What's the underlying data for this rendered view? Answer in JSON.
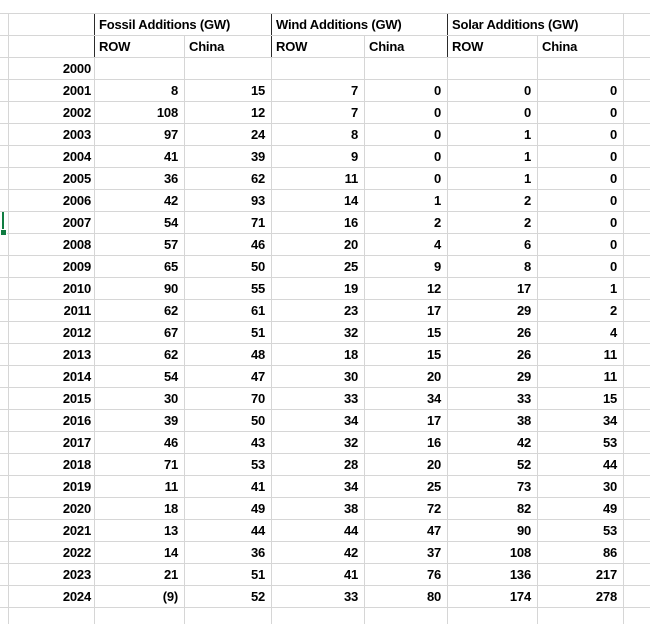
{
  "table": {
    "groups": [
      {
        "label": "Fossil Additions (GW)"
      },
      {
        "label": "Wind Additions (GW)"
      },
      {
        "label": "Solar Additions (GW)"
      }
    ],
    "subheaders": [
      "ROW",
      "China"
    ],
    "rows": [
      {
        "year": "2000",
        "values": [
          "",
          "",
          "",
          "",
          "",
          ""
        ]
      },
      {
        "year": "2001",
        "values": [
          "8",
          "15",
          "7",
          "0",
          "0",
          "0"
        ]
      },
      {
        "year": "2002",
        "values": [
          "108",
          "12",
          "7",
          "0",
          "0",
          "0"
        ]
      },
      {
        "year": "2003",
        "values": [
          "97",
          "24",
          "8",
          "0",
          "1",
          "0"
        ]
      },
      {
        "year": "2004",
        "values": [
          "41",
          "39",
          "9",
          "0",
          "1",
          "0"
        ]
      },
      {
        "year": "2005",
        "values": [
          "36",
          "62",
          "11",
          "0",
          "1",
          "0"
        ]
      },
      {
        "year": "2006",
        "values": [
          "42",
          "93",
          "14",
          "1",
          "2",
          "0"
        ]
      },
      {
        "year": "2007",
        "values": [
          "54",
          "71",
          "16",
          "2",
          "2",
          "0"
        ]
      },
      {
        "year": "2008",
        "values": [
          "57",
          "46",
          "20",
          "4",
          "6",
          "0"
        ]
      },
      {
        "year": "2009",
        "values": [
          "65",
          "50",
          "25",
          "9",
          "8",
          "0"
        ]
      },
      {
        "year": "2010",
        "values": [
          "90",
          "55",
          "19",
          "12",
          "17",
          "1"
        ]
      },
      {
        "year": "2011",
        "values": [
          "62",
          "61",
          "23",
          "17",
          "29",
          "2"
        ]
      },
      {
        "year": "2012",
        "values": [
          "67",
          "51",
          "32",
          "15",
          "26",
          "4"
        ]
      },
      {
        "year": "2013",
        "values": [
          "62",
          "48",
          "18",
          "15",
          "26",
          "11"
        ]
      },
      {
        "year": "2014",
        "values": [
          "54",
          "47",
          "30",
          "20",
          "29",
          "11"
        ]
      },
      {
        "year": "2015",
        "values": [
          "30",
          "70",
          "33",
          "34",
          "33",
          "15"
        ]
      },
      {
        "year": "2016",
        "values": [
          "39",
          "50",
          "34",
          "17",
          "38",
          "34"
        ]
      },
      {
        "year": "2017",
        "values": [
          "46",
          "43",
          "32",
          "16",
          "42",
          "53"
        ]
      },
      {
        "year": "2018",
        "values": [
          "71",
          "53",
          "28",
          "20",
          "52",
          "44"
        ]
      },
      {
        "year": "2019",
        "values": [
          "11",
          "41",
          "34",
          "25",
          "73",
          "30"
        ]
      },
      {
        "year": "2020",
        "values": [
          "18",
          "49",
          "38",
          "72",
          "82",
          "49"
        ]
      },
      {
        "year": "2021",
        "values": [
          "13",
          "44",
          "44",
          "47",
          "90",
          "53"
        ]
      },
      {
        "year": "2022",
        "values": [
          "14",
          "36",
          "42",
          "37",
          "108",
          "86"
        ]
      },
      {
        "year": "2023",
        "values": [
          "21",
          "51",
          "41",
          "76",
          "136",
          "217"
        ]
      },
      {
        "year": "2024",
        "values": [
          "(9)",
          "52",
          "33",
          "80",
          "174",
          "278"
        ]
      }
    ]
  },
  "selection": {
    "selected_row_year": "2007"
  },
  "colors": {
    "gridline": "#d6d6d6",
    "header_separator": "#2b2b2b",
    "text": "#000000",
    "selection_green": "#107C41"
  }
}
